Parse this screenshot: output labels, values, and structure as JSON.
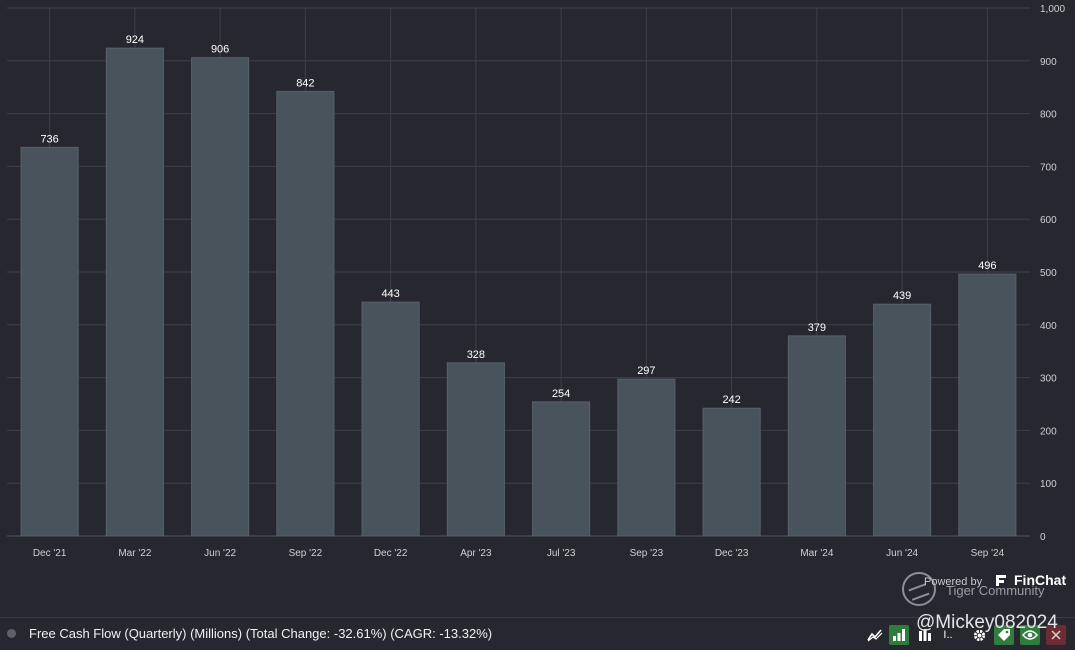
{
  "chart_data": {
    "type": "bar",
    "title": "",
    "xlabel": "",
    "ylabel": "",
    "categories": [
      "Dec '21",
      "Mar '22",
      "Jun '22",
      "Sep '22",
      "Dec '22",
      "Apr '23",
      "Jul '23",
      "Sep '23",
      "Dec '23",
      "Mar '24",
      "Jun '24",
      "Sep '24"
    ],
    "values": [
      736,
      924,
      906,
      842,
      443,
      328,
      254,
      297,
      242,
      379,
      439,
      496
    ],
    "ylim": [
      0,
      1000
    ],
    "yticks": [
      0,
      100,
      200,
      300,
      400,
      500,
      600,
      700,
      800,
      900,
      1000
    ],
    "ytick_labels": [
      "0",
      "100",
      "200",
      "300",
      "400",
      "500",
      "600",
      "700",
      "800",
      "900",
      "1,000"
    ],
    "y_axis_position": "right",
    "grid": true,
    "bar_color": "#48535b"
  },
  "legend": {
    "text": "Free Cash Flow (Quarterly) (Millions) (Total Change: -32.61%) (CAGR: -13.32%)"
  },
  "watermark": {
    "powered_by": "Powered by",
    "brand": "FinChat",
    "community": "Tiger Community"
  },
  "user_handle": "@Mickey082024",
  "toolbar": {
    "truncated_label": "I..",
    "icons": [
      "chart-line-icon",
      "bar-chart-icon",
      "column-chart-icon",
      "gear-icon",
      "tag-icon",
      "eye-icon",
      "close-icon"
    ]
  },
  "colors": {
    "background": "#27272f",
    "bar": "#48535b",
    "grid": "#3f4049",
    "green_button": "#2e7d3c",
    "red_button": "#6b2d33"
  }
}
